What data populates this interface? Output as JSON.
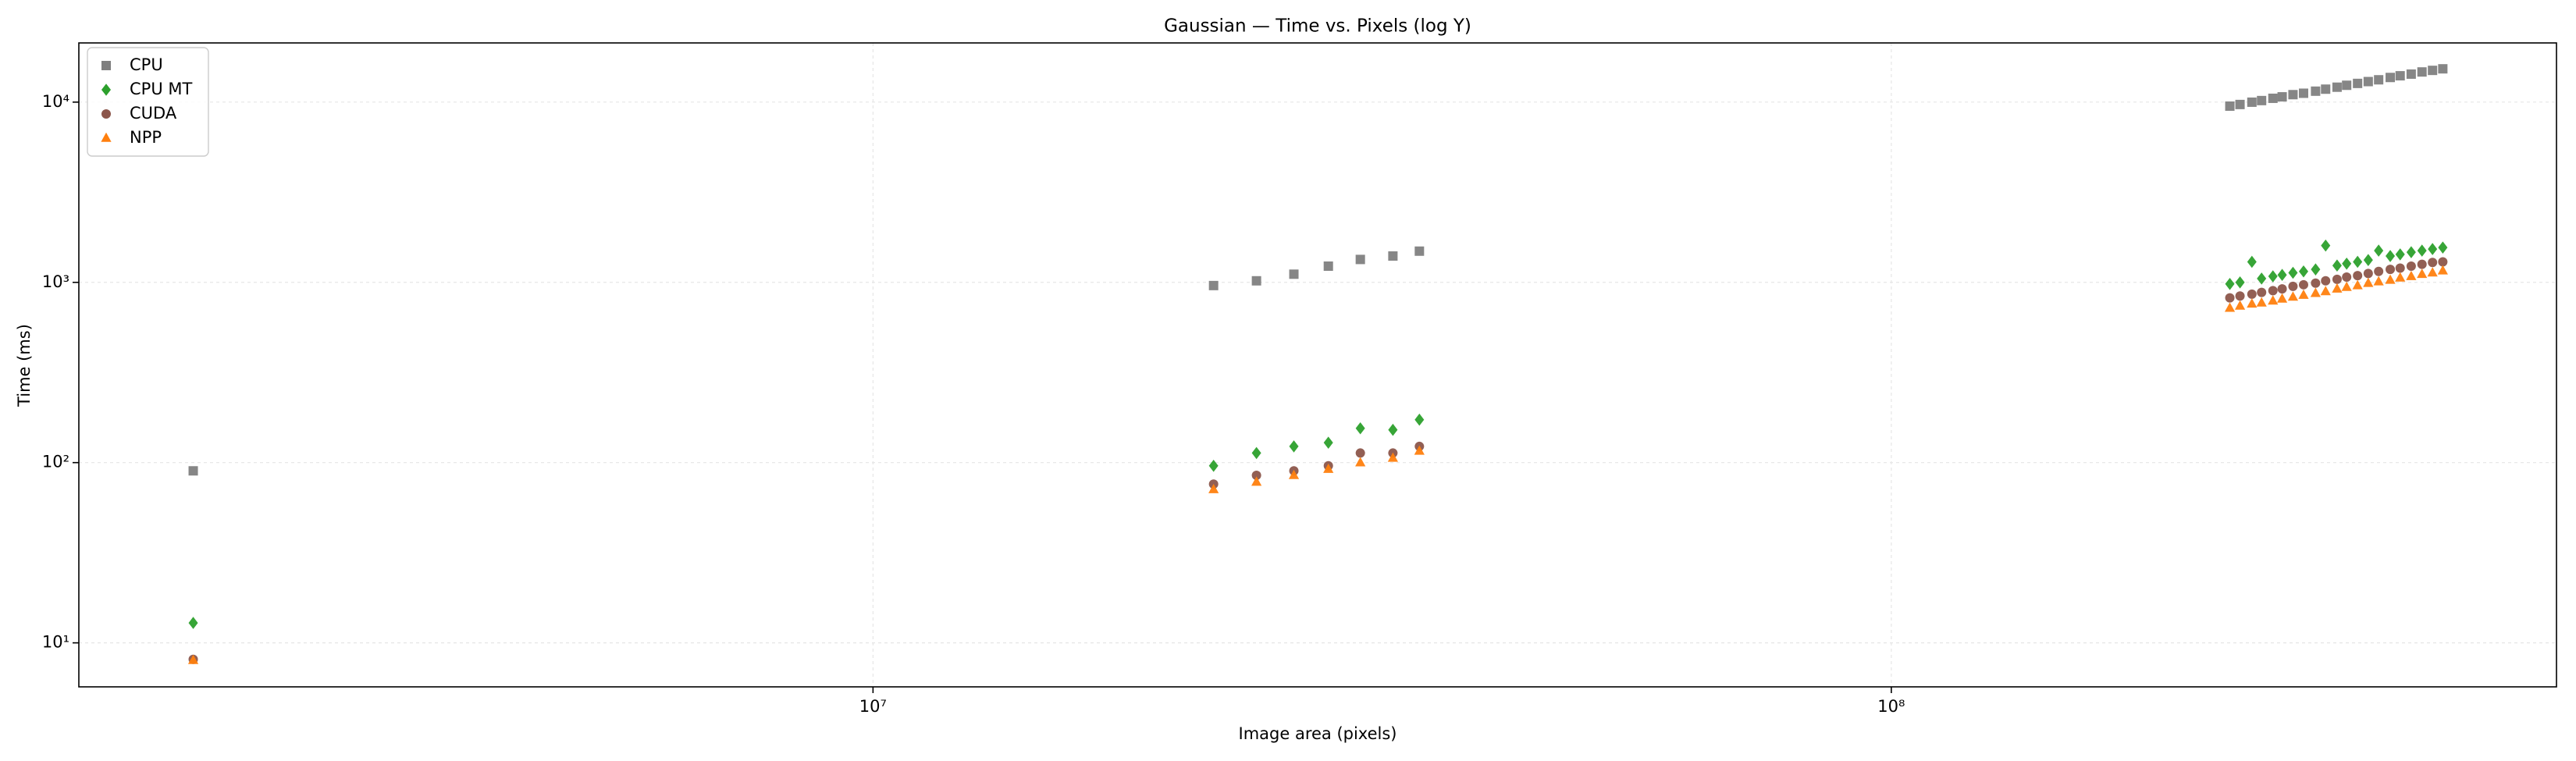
{
  "chart_data": {
    "type": "scatter",
    "title": "Gaussian — Time vs. Pixels (log Y)",
    "x_label": "Image area (pixels)",
    "y_label": "Time (ms)",
    "xscale": "log",
    "yscale": "log",
    "grid": true,
    "legend": "upper left",
    "xlim": [
      1660000,
      450000000
    ],
    "ylim": [
      5.7,
      21300
    ],
    "xticks": [
      {
        "value": 10000000,
        "label": "10⁷"
      },
      {
        "value": 100000000,
        "label": "10⁸"
      }
    ],
    "yticks": [
      {
        "value": 10,
        "label": "10¹"
      },
      {
        "value": 100,
        "label": "10²"
      },
      {
        "value": 1000,
        "label": "10³"
      },
      {
        "value": 10000,
        "label": "10⁴"
      }
    ],
    "x": [
      2150000,
      21600000,
      23800000,
      25900000,
      28000000,
      30100000,
      32400000,
      34400000,
      215000000,
      220000000,
      226000000,
      231000000,
      237000000,
      242000000,
      248000000,
      254000000,
      261000000,
      267000000,
      274000000,
      280000000,
      287000000,
      294000000,
      301000000,
      309000000,
      316000000,
      324000000,
      332000000,
      340000000,
      348000000
    ],
    "series": [
      {
        "name": "CPU",
        "color": "#7f7f7f",
        "marker": "square",
        "values": [
          90,
          960,
          1020,
          1110,
          1230,
          1340,
          1400,
          1490,
          9500,
          9700,
          9990,
          10200,
          10500,
          10700,
          11000,
          11200,
          11500,
          11800,
          12100,
          12400,
          12700,
          13000,
          13300,
          13700,
          14000,
          14300,
          14700,
          15000,
          15300
        ]
      },
      {
        "name": "CPU MT",
        "color": "#2ca02c",
        "marker": "diamond",
        "values": [
          12.9,
          96,
          113,
          123,
          129,
          155,
          152,
          173,
          980,
          1000,
          1300,
          1050,
          1080,
          1100,
          1130,
          1150,
          1180,
          1600,
          1240,
          1270,
          1300,
          1330,
          1500,
          1400,
          1430,
          1470,
          1500,
          1530,
          1560
        ]
      },
      {
        "name": "CUDA",
        "color": "#8c564b",
        "marker": "circle",
        "values": [
          8.1,
          76,
          85,
          90,
          96,
          113,
          113,
          123,
          820,
          840,
          860,
          880,
          900,
          920,
          950,
          970,
          990,
          1020,
          1040,
          1070,
          1090,
          1120,
          1150,
          1180,
          1200,
          1230,
          1260,
          1290,
          1300
        ]
      },
      {
        "name": "NPP",
        "color": "#ff7f0e",
        "marker": "triangle",
        "values": [
          8,
          71,
          78,
          85,
          92,
          100,
          106,
          116,
          720,
          740,
          760,
          770,
          790,
          810,
          830,
          850,
          870,
          890,
          920,
          940,
          960,
          990,
          1010,
          1030,
          1060,
          1080,
          1110,
          1130,
          1160
        ]
      }
    ]
  }
}
